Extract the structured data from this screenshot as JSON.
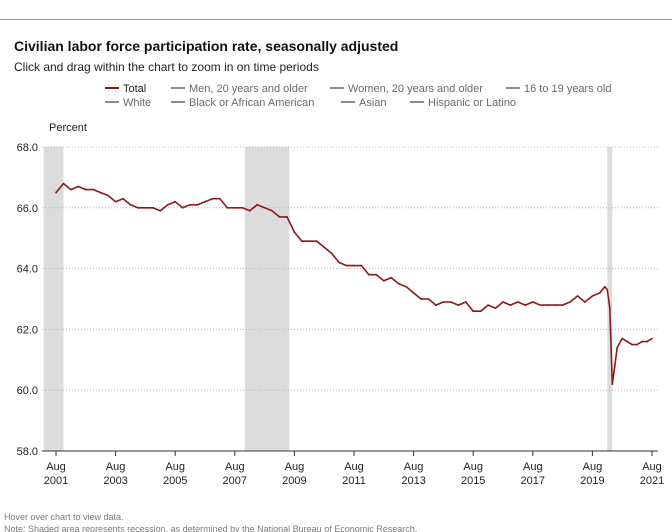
{
  "header": {
    "title": "Civilian labor force participation rate, seasonally adjusted",
    "subtitle": "Click and drag within the chart to zoom in on time periods"
  },
  "legend": [
    {
      "label": "Total",
      "color": "#8b1a1a",
      "active": true
    },
    {
      "label": "Men, 20 years and older",
      "color": "#8c8c8c",
      "active": false
    },
    {
      "label": "Women, 20 years and older",
      "color": "#8c8c8c",
      "active": false
    },
    {
      "label": "16 to 19 years old",
      "color": "#8c8c8c",
      "active": false
    },
    {
      "label": "White",
      "color": "#8c8c8c",
      "active": false
    },
    {
      "label": "Black or African American",
      "color": "#8c8c8c",
      "active": false
    },
    {
      "label": "Asian",
      "color": "#8c8c8c",
      "active": false
    },
    {
      "label": "Hispanic or Latino",
      "color": "#8c8c8c",
      "active": false
    }
  ],
  "footer": {
    "hover_hint": "Hover over chart to view data.",
    "note": "Note: Shaded area represents recession, as determined by the National Bureau of Economic Research."
  },
  "chart_data": {
    "type": "line",
    "ylabel": "Percent",
    "ylim": [
      58.0,
      68.0
    ],
    "yticks": [
      "68.0",
      "66.0",
      "64.0",
      "62.0",
      "60.0",
      "58.0"
    ],
    "xticks": [
      {
        "month": "Aug",
        "year": "2001"
      },
      {
        "month": "Aug",
        "year": "2003"
      },
      {
        "month": "Aug",
        "year": "2005"
      },
      {
        "month": "Aug",
        "year": "2007"
      },
      {
        "month": "Aug",
        "year": "2009"
      },
      {
        "month": "Aug",
        "year": "2011"
      },
      {
        "month": "Aug",
        "year": "2013"
      },
      {
        "month": "Aug",
        "year": "2015"
      },
      {
        "month": "Aug",
        "year": "2017"
      },
      {
        "month": "Aug",
        "year": "2019"
      },
      {
        "month": "Aug",
        "year": "2021"
      }
    ],
    "recessions": [
      {
        "start": "2001-03",
        "end": "2001-11"
      },
      {
        "start": "2007-12",
        "end": "2009-06"
      },
      {
        "start": "2020-02",
        "end": "2020-04"
      }
    ],
    "grid": "horizontal-dotted",
    "series": [
      {
        "name": "Total",
        "color": "#8b1a1a",
        "points": [
          [
            "2001-08",
            66.5
          ],
          [
            "2001-11",
            66.8
          ],
          [
            "2002-02",
            66.6
          ],
          [
            "2002-05",
            66.7
          ],
          [
            "2002-08",
            66.6
          ],
          [
            "2002-11",
            66.6
          ],
          [
            "2003-02",
            66.5
          ],
          [
            "2003-05",
            66.4
          ],
          [
            "2003-08",
            66.2
          ],
          [
            "2003-11",
            66.3
          ],
          [
            "2004-02",
            66.1
          ],
          [
            "2004-05",
            66.0
          ],
          [
            "2004-08",
            66.0
          ],
          [
            "2004-11",
            66.0
          ],
          [
            "2005-02",
            65.9
          ],
          [
            "2005-05",
            66.1
          ],
          [
            "2005-08",
            66.2
          ],
          [
            "2005-11",
            66.0
          ],
          [
            "2006-02",
            66.1
          ],
          [
            "2006-05",
            66.1
          ],
          [
            "2006-08",
            66.2
          ],
          [
            "2006-11",
            66.3
          ],
          [
            "2007-02",
            66.3
          ],
          [
            "2007-05",
            66.0
          ],
          [
            "2007-08",
            66.0
          ],
          [
            "2007-11",
            66.0
          ],
          [
            "2008-02",
            65.9
          ],
          [
            "2008-05",
            66.1
          ],
          [
            "2008-08",
            66.0
          ],
          [
            "2008-11",
            65.9
          ],
          [
            "2009-02",
            65.7
          ],
          [
            "2009-05",
            65.7
          ],
          [
            "2009-08",
            65.2
          ],
          [
            "2009-11",
            64.9
          ],
          [
            "2010-02",
            64.9
          ],
          [
            "2010-05",
            64.9
          ],
          [
            "2010-08",
            64.7
          ],
          [
            "2010-11",
            64.5
          ],
          [
            "2011-02",
            64.2
          ],
          [
            "2011-05",
            64.1
          ],
          [
            "2011-08",
            64.1
          ],
          [
            "2011-11",
            64.1
          ],
          [
            "2012-02",
            63.8
          ],
          [
            "2012-05",
            63.8
          ],
          [
            "2012-08",
            63.6
          ],
          [
            "2012-11",
            63.7
          ],
          [
            "2013-02",
            63.5
          ],
          [
            "2013-05",
            63.4
          ],
          [
            "2013-08",
            63.2
          ],
          [
            "2013-11",
            63.0
          ],
          [
            "2014-02",
            63.0
          ],
          [
            "2014-05",
            62.8
          ],
          [
            "2014-08",
            62.9
          ],
          [
            "2014-11",
            62.9
          ],
          [
            "2015-02",
            62.8
          ],
          [
            "2015-05",
            62.9
          ],
          [
            "2015-08",
            62.6
          ],
          [
            "2015-11",
            62.6
          ],
          [
            "2016-02",
            62.8
          ],
          [
            "2016-05",
            62.7
          ],
          [
            "2016-08",
            62.9
          ],
          [
            "2016-11",
            62.8
          ],
          [
            "2017-02",
            62.9
          ],
          [
            "2017-05",
            62.8
          ],
          [
            "2017-08",
            62.9
          ],
          [
            "2017-11",
            62.8
          ],
          [
            "2018-02",
            62.8
          ],
          [
            "2018-05",
            62.8
          ],
          [
            "2018-08",
            62.8
          ],
          [
            "2018-11",
            62.9
          ],
          [
            "2019-02",
            63.1
          ],
          [
            "2019-05",
            62.9
          ],
          [
            "2019-08",
            63.1
          ],
          [
            "2019-11",
            63.2
          ],
          [
            "2020-01",
            63.4
          ],
          [
            "2020-02",
            63.3
          ],
          [
            "2020-03",
            62.7
          ],
          [
            "2020-04",
            60.2
          ],
          [
            "2020-05",
            60.8
          ],
          [
            "2020-06",
            61.4
          ],
          [
            "2020-08",
            61.7
          ],
          [
            "2020-10",
            61.6
          ],
          [
            "2020-12",
            61.5
          ],
          [
            "2021-02",
            61.5
          ],
          [
            "2021-04",
            61.6
          ],
          [
            "2021-06",
            61.6
          ],
          [
            "2021-08",
            61.7
          ]
        ]
      }
    ]
  }
}
